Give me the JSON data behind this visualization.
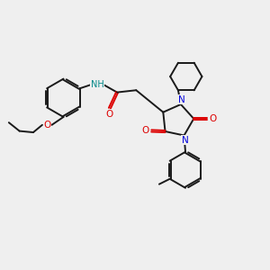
{
  "bg_color": "#efefef",
  "atom_colors": {
    "C": "#1a1a1a",
    "N": "#0000dd",
    "O": "#dd0000",
    "H": "#008888"
  },
  "bond_color": "#1a1a1a",
  "line_width": 1.4,
  "xlim": [
    0,
    10
  ],
  "ylim": [
    0,
    10
  ]
}
